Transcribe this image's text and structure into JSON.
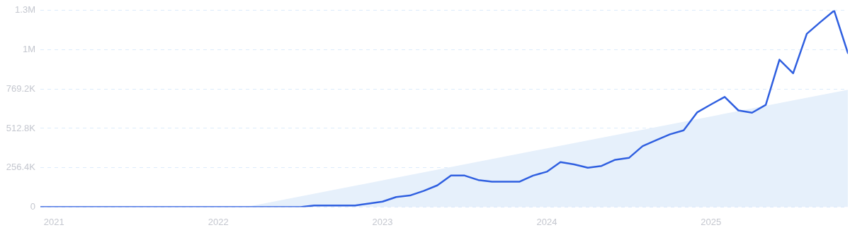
{
  "chart_data": {
    "type": "line",
    "x": [
      "2020-12",
      "2021-01",
      "2021-02",
      "2021-03",
      "2021-04",
      "2021-05",
      "2021-06",
      "2021-07",
      "2021-08",
      "2021-09",
      "2021-10",
      "2021-11",
      "2021-12",
      "2022-01",
      "2022-02",
      "2022-03",
      "2022-04",
      "2022-05",
      "2022-06",
      "2022-07",
      "2022-08",
      "2022-09",
      "2022-10",
      "2022-11",
      "2022-12",
      "2023-01",
      "2023-02",
      "2023-03",
      "2023-04",
      "2023-05",
      "2023-06",
      "2023-07",
      "2023-08",
      "2023-09",
      "2023-10",
      "2023-11",
      "2023-12",
      "2024-01",
      "2024-02",
      "2024-03",
      "2024-04",
      "2024-05",
      "2024-06",
      "2024-07",
      "2024-08",
      "2024-09",
      "2024-10",
      "2024-11",
      "2024-12",
      "2025-01",
      "2025-02",
      "2025-03",
      "2025-04",
      "2025-05",
      "2025-06",
      "2025-07",
      "2025-08",
      "2025-09",
      "2025-10",
      "2025-11"
    ],
    "series": [
      {
        "type": "area",
        "color": "#e6f0fb",
        "x": [
          "2022-03",
          "2025-11"
        ],
        "values": [
          0,
          765000
        ]
      },
      {
        "type": "line",
        "color": "#2f5fe0",
        "values": [
          0,
          0,
          0,
          0,
          0,
          0,
          0,
          0,
          0,
          0,
          0,
          0,
          0,
          0,
          0,
          0,
          0,
          0,
          0,
          0,
          10000,
          10000,
          10000,
          10000,
          23000,
          35000,
          65000,
          75000,
          105000,
          141000,
          205000,
          205000,
          176000,
          165000,
          165000,
          165000,
          205000,
          230000,
          293000,
          278000,
          256000,
          268000,
          308000,
          320000,
          397000,
          436000,
          474000,
          500000,
          618000,
          669000,
          718000,
          630000,
          615000,
          666000,
          961000,
          872000,
          1130000,
          1207000,
          1281000,
          1004000
        ]
      }
    ],
    "xlim": [
      "2020-12",
      "2025-11"
    ],
    "xticks": [
      "2021",
      "2022",
      "2023",
      "2024",
      "2025"
    ],
    "ylim": [
      0,
      1282000
    ],
    "yticks": [
      0,
      {
        "value": 256400,
        "label": "256.4K"
      },
      {
        "value": 512800,
        "label": "512.8K"
      },
      {
        "value": 769200,
        "label": "769.2K"
      },
      {
        "value": 1025600,
        "label": "1M"
      },
      {
        "value": 1282000,
        "label": "1.3M"
      }
    ],
    "grid": "y",
    "legend": false,
    "marker": "none",
    "line_style": "solid"
  }
}
